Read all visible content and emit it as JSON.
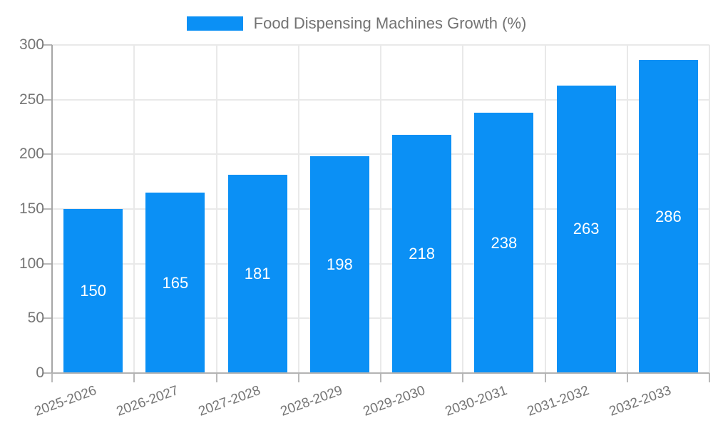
{
  "chart_data": {
    "type": "bar",
    "title": "Food Dispensing Machines Growth (%)",
    "categories": [
      "2025-2026",
      "2026-2027",
      "2027-2028",
      "2028-2029",
      "2029-2030",
      "2030-2031",
      "2031-2032",
      "2032-2033"
    ],
    "values": [
      150,
      165,
      181,
      198,
      218,
      238,
      263,
      286
    ],
    "xlabel": "",
    "ylabel": "",
    "ylim": [
      0,
      300
    ],
    "yticks": [
      0,
      50,
      100,
      150,
      200,
      250,
      300
    ],
    "grid": true,
    "legend_position": "top",
    "bar_color": "#0b90f5",
    "value_label_color": "#ffffff",
    "axis_label_color": "#757575",
    "grid_color": "#e9e9e9",
    "axis_color": "#b3b3b3",
    "background": "#ffffff"
  }
}
